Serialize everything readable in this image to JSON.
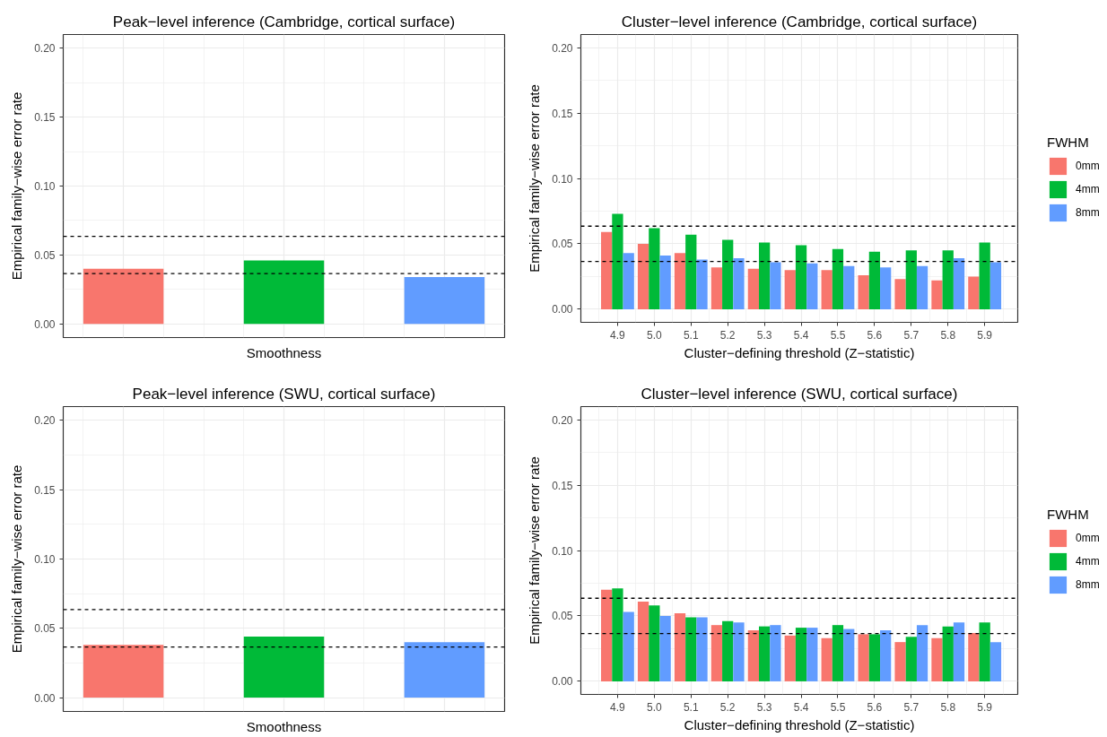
{
  "chart_data": [
    {
      "type": "bar",
      "title": "Peak−level inference (Cambridge, cortical surface)",
      "xlabel": "Smoothness",
      "ylabel": "Empirical family−wise error rate",
      "categories": [
        null,
        null,
        null
      ],
      "values": [
        0.04,
        0.046,
        0.034
      ],
      "colors": [
        "#f8766d",
        "#00ba38",
        "#619cff"
      ],
      "ylim": [
        -0.01,
        0.21
      ],
      "yticks": [
        {
          "value": 0,
          "label": "0.00"
        },
        {
          "value": 0.05,
          "label": "0.05"
        },
        {
          "value": 0.1,
          "label": "0.10"
        },
        {
          "value": 0.15,
          "label": "0.15"
        },
        {
          "value": 0.2,
          "label": "0.20"
        }
      ],
      "grid": true,
      "tick_labels": "y",
      "ref_lines": [
        {
          "axis": "y",
          "value": 0.0635,
          "color": "#000000",
          "line_style": "dashed"
        },
        {
          "axis": "y",
          "value": 0.0365,
          "color": "#000000",
          "line_style": "dashed"
        }
      ]
    },
    {
      "type": "bar",
      "title": "Cluster−level inference (Cambridge, cortical surface)",
      "xlabel": "Cluster−defining threshold (Z−statistic)",
      "ylabel": "Empirical family−wise error rate",
      "categories": [
        "4.9",
        "5.0",
        "5.1",
        "5.2",
        "5.3",
        "5.4",
        "5.5",
        "5.6",
        "5.7",
        "5.8",
        "5.9"
      ],
      "series": [
        {
          "name": "0mm",
          "color": "#f8766d",
          "values": [
            0.059,
            0.05,
            0.043,
            0.032,
            0.031,
            0.03,
            0.03,
            0.026,
            0.023,
            0.022,
            0.025
          ]
        },
        {
          "name": "4mm",
          "color": "#00ba38",
          "values": [
            0.073,
            0.062,
            0.057,
            0.053,
            0.051,
            0.049,
            0.046,
            0.044,
            0.045,
            0.045,
            0.051
          ]
        },
        {
          "name": "8mm",
          "color": "#619cff",
          "values": [
            0.043,
            0.041,
            0.038,
            0.039,
            0.036,
            0.035,
            0.033,
            0.032,
            0.033,
            0.039,
            0.036
          ]
        }
      ],
      "legend_title": "FWHM",
      "legend": "right",
      "ylim": [
        -0.01,
        0.21
      ],
      "yticks": [
        {
          "value": 0,
          "label": "0.00"
        },
        {
          "value": 0.05,
          "label": "0.05"
        },
        {
          "value": 0.1,
          "label": "0.10"
        },
        {
          "value": 0.15,
          "label": "0.15"
        },
        {
          "value": 0.2,
          "label": "0.20"
        }
      ],
      "grid": true,
      "ref_lines": [
        {
          "axis": "y",
          "value": 0.0635,
          "color": "#000000",
          "line_style": "dashed"
        },
        {
          "axis": "y",
          "value": 0.0365,
          "color": "#000000",
          "line_style": "dashed"
        }
      ]
    },
    {
      "type": "bar",
      "title": "Peak−level inference (SWU, cortical surface)",
      "xlabel": "Smoothness",
      "ylabel": "Empirical family−wise error rate",
      "categories": [
        null,
        null,
        null
      ],
      "values": [
        0.038,
        0.044,
        0.04
      ],
      "colors": [
        "#f8766d",
        "#00ba38",
        "#619cff"
      ],
      "ylim": [
        -0.01,
        0.21
      ],
      "yticks": [
        {
          "value": 0,
          "label": "0.00"
        },
        {
          "value": 0.05,
          "label": "0.05"
        },
        {
          "value": 0.1,
          "label": "0.10"
        },
        {
          "value": 0.15,
          "label": "0.15"
        },
        {
          "value": 0.2,
          "label": "0.20"
        }
      ],
      "grid": true,
      "tick_labels": "y",
      "ref_lines": [
        {
          "axis": "y",
          "value": 0.0635,
          "color": "#000000",
          "line_style": "dashed"
        },
        {
          "axis": "y",
          "value": 0.0365,
          "color": "#000000",
          "line_style": "dashed"
        }
      ]
    },
    {
      "type": "bar",
      "title": "Cluster−level inference (SWU, cortical surface)",
      "xlabel": "Cluster−defining threshold (Z−statistic)",
      "ylabel": "Empirical family−wise error rate",
      "categories": [
        "4.9",
        "5.0",
        "5.1",
        "5.2",
        "5.3",
        "5.4",
        "5.5",
        "5.6",
        "5.7",
        "5.8",
        "5.9"
      ],
      "series": [
        {
          "name": "0mm",
          "color": "#f8766d",
          "values": [
            0.07,
            0.061,
            0.052,
            0.043,
            0.039,
            0.035,
            0.033,
            0.036,
            0.03,
            0.033,
            0.037
          ]
        },
        {
          "name": "4mm",
          "color": "#00ba38",
          "values": [
            0.071,
            0.058,
            0.049,
            0.046,
            0.042,
            0.041,
            0.043,
            0.036,
            0.034,
            0.042,
            0.045
          ]
        },
        {
          "name": "8mm",
          "color": "#619cff",
          "values": [
            0.053,
            0.05,
            0.049,
            0.045,
            0.043,
            0.041,
            0.04,
            0.039,
            0.043,
            0.045,
            0.03
          ]
        }
      ],
      "legend_title": "FWHM",
      "legend": "right",
      "ylim": [
        -0.01,
        0.21
      ],
      "yticks": [
        {
          "value": 0,
          "label": "0.00"
        },
        {
          "value": 0.05,
          "label": "0.05"
        },
        {
          "value": 0.1,
          "label": "0.10"
        },
        {
          "value": 0.15,
          "label": "0.15"
        },
        {
          "value": 0.2,
          "label": "0.20"
        }
      ],
      "grid": true,
      "ref_lines": [
        {
          "axis": "y",
          "value": 0.0635,
          "color": "#000000",
          "line_style": "dashed"
        },
        {
          "axis": "y",
          "value": 0.0365,
          "color": "#000000",
          "line_style": "dashed"
        }
      ]
    }
  ]
}
